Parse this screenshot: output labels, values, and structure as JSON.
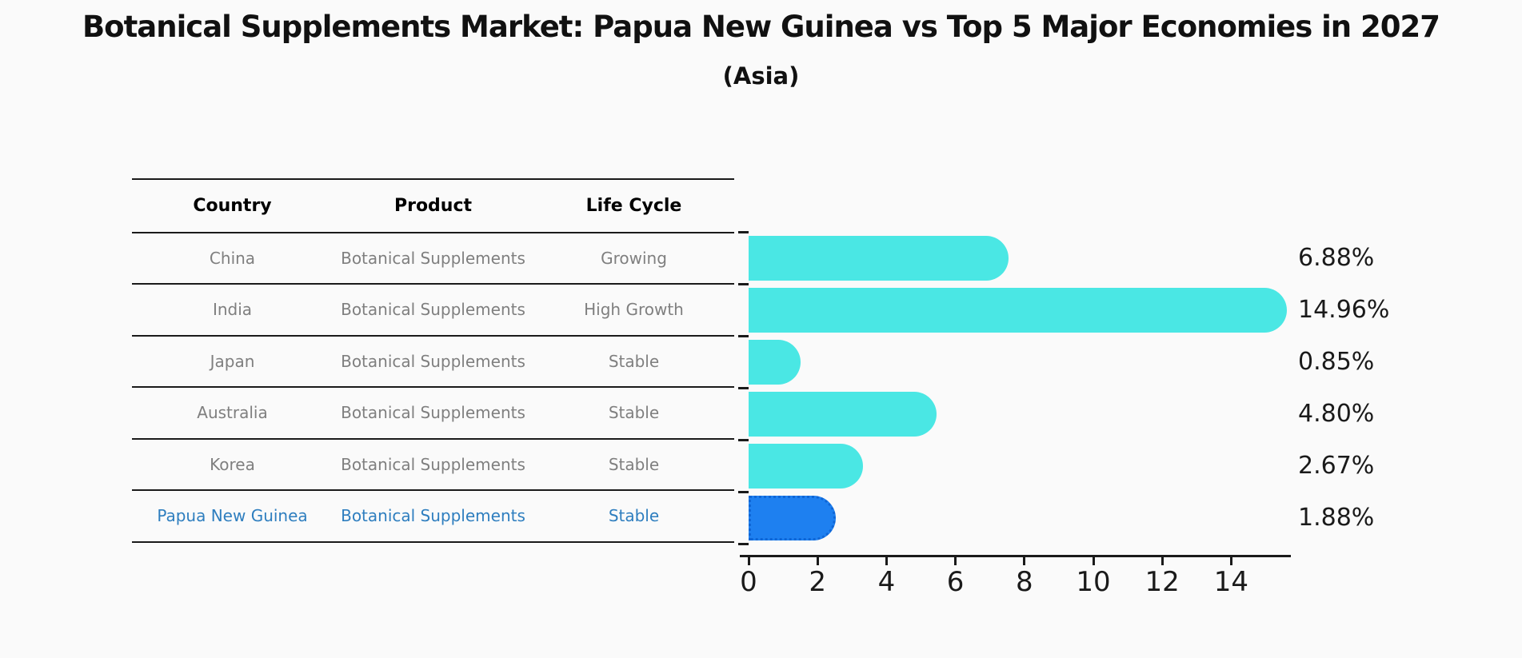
{
  "title": "Botanical Supplements Market: Papua New Guinea vs Top 5 Major Economies in 2027",
  "subtitle": "(Asia)",
  "table": {
    "headers": [
      "Country",
      "Product",
      "Life Cycle"
    ],
    "rows": [
      {
        "country": "China",
        "product": "Botanical Supplements",
        "life_cycle": "Growing",
        "highlight": false
      },
      {
        "country": "India",
        "product": "Botanical Supplements",
        "life_cycle": "High Growth",
        "highlight": false
      },
      {
        "country": "Japan",
        "product": "Botanical Supplements",
        "life_cycle": "Stable",
        "highlight": false
      },
      {
        "country": "Australia",
        "product": "Botanical Supplements",
        "life_cycle": "Stable",
        "highlight": false
      },
      {
        "country": "Korea",
        "product": "Botanical Supplements",
        "life_cycle": "Stable",
        "highlight": false
      },
      {
        "country": "Papua New Guinea",
        "product": "Botanical Supplements",
        "life_cycle": "Stable",
        "highlight": true
      }
    ]
  },
  "chart_data": {
    "type": "bar",
    "orientation": "horizontal",
    "title": "Botanical Supplements Market: Papua New Guinea vs Top 5 Major Economies in 2027 (Asia)",
    "categories": [
      "China",
      "India",
      "Japan",
      "Australia",
      "Korea",
      "Papua New Guinea"
    ],
    "values": [
      6.88,
      14.96,
      0.85,
      4.8,
      2.67,
      1.88
    ],
    "value_labels": [
      "6.88%",
      "14.96%",
      "0.85%",
      "4.80%",
      "2.67%",
      "1.88%"
    ],
    "x_ticks": [
      0,
      2,
      4,
      6,
      8,
      10,
      12,
      14
    ],
    "xlim": [
      0,
      15.75
    ],
    "grid": false,
    "legend": "none",
    "highlight_index": 5
  },
  "colors": {
    "background": "#FAFAFA",
    "bar": "#4AE7E4",
    "highlight_bar": "#1E80F0",
    "highlight_text": "#2E7EBF",
    "table_text": "#7F7F7F",
    "header_text": "#000000",
    "axis": "#1A1A1A"
  }
}
